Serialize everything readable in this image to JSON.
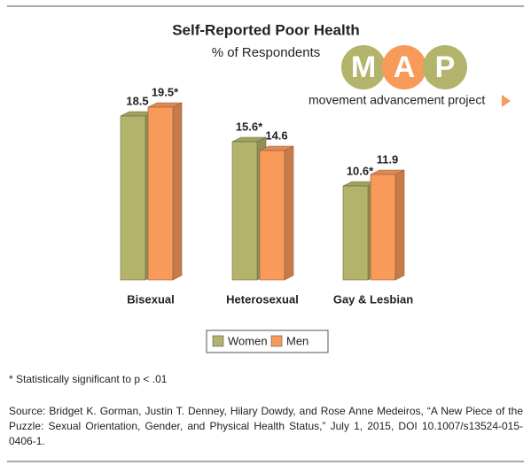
{
  "chart_data": {
    "type": "bar",
    "title": "Self-Reported Poor Health",
    "subtitle": "% of Respondents",
    "categories": [
      "Bisexual",
      "Heterosexual",
      "Gay & Lesbian"
    ],
    "series": [
      {
        "name": "Women",
        "color": "#b3b36b",
        "values": [
          18.5,
          15.6,
          10.6
        ],
        "value_labels": [
          "18.5",
          "15.6*",
          "10.6*"
        ]
      },
      {
        "name": "Men",
        "color": "#f79a5a",
        "values": [
          19.5,
          14.6,
          11.9
        ],
        "value_labels": [
          "19.5*",
          "14.6",
          "11.9"
        ]
      }
    ]
  },
  "logo": {
    "letters": [
      "M",
      "A",
      "P"
    ],
    "tagline": "movement advancement project"
  },
  "footnote": "* Statistically significant to p < .01",
  "source": "Source: Bridget K. Gorman, Justin T. Denney, Hilary Dowdy, and Rose Anne Medeiros, “A New Piece of the Puzzle: Sexual Orientation, Gender, and Physical Health Status,” July 1, 2015, DOI 10.1007/s13524-015-0406-1."
}
